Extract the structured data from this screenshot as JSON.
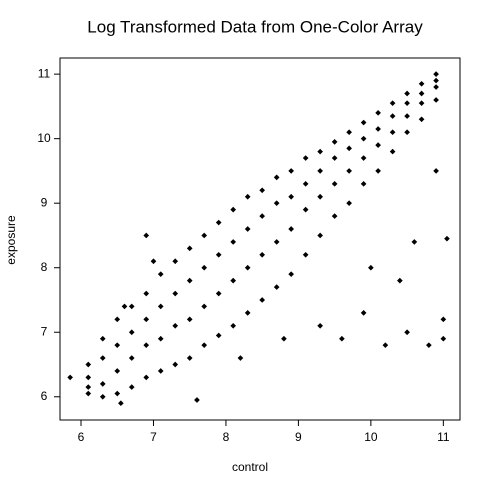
{
  "chart_data": {
    "type": "scatter",
    "title": "Log Transformed Data from One-Color Array",
    "x_label": "control",
    "y_label": "exposure",
    "color": "#000000",
    "xlim": [
      5.71,
      11.23
    ],
    "ylim": [
      5.64,
      11.25
    ],
    "xticks": [
      6,
      7,
      8,
      9,
      10,
      11
    ],
    "yticks": [
      6,
      7,
      8,
      9,
      10,
      11
    ],
    "x": [
      6.1,
      6.1,
      6.1,
      6.1,
      6.3,
      6.3,
      6.3,
      6.3,
      6.5,
      6.5,
      6.5,
      6.5,
      6.7,
      6.7,
      6.7,
      6.7,
      6.9,
      6.9,
      6.9,
      6.9,
      7.1,
      7.1,
      7.1,
      7.1,
      7.3,
      7.3,
      7.3,
      7.3,
      7.5,
      7.5,
      7.5,
      7.5,
      7.7,
      7.7,
      7.7,
      7.7,
      7.9,
      7.9,
      7.9,
      7.9,
      8.1,
      8.1,
      8.1,
      8.1,
      8.3,
      8.3,
      8.3,
      8.3,
      8.5,
      8.5,
      8.5,
      8.5,
      8.7,
      8.7,
      8.7,
      8.7,
      8.9,
      8.9,
      8.9,
      8.9,
      9.1,
      9.1,
      9.1,
      9.1,
      9.3,
      9.3,
      9.3,
      9.3,
      9.5,
      9.5,
      9.5,
      9.5,
      9.7,
      9.7,
      9.7,
      9.7,
      9.9,
      9.9,
      9.9,
      9.9,
      10.1,
      10.1,
      10.1,
      10.1,
      10.3,
      10.3,
      10.3,
      10.3,
      10.5,
      10.5,
      10.5,
      10.5,
      10.7,
      10.7,
      10.7,
      10.7,
      10.9,
      10.9,
      10.9,
      10.9,
      5.85,
      6.55,
      6.6,
      6.9,
      7.0,
      7.6,
      8.2,
      8.8,
      9.3,
      9.6,
      9.9,
      10.2,
      10.5,
      10.8,
      11.0,
      11.0,
      10.6,
      11.05,
      10.9,
      10.4,
      10.0
    ],
    "y": [
      6.5,
      6.3,
      6.15,
      6.05,
      6.9,
      6.6,
      6.2,
      6.0,
      7.2,
      6.8,
      6.4,
      6.05,
      7.4,
      7.0,
      6.6,
      6.15,
      7.6,
      7.2,
      6.8,
      6.3,
      7.9,
      7.4,
      6.9,
      6.4,
      8.1,
      7.6,
      7.1,
      6.5,
      8.3,
      7.8,
      7.2,
      6.6,
      8.5,
      8.0,
      7.4,
      6.8,
      8.7,
      8.2,
      7.6,
      6.95,
      8.9,
      8.4,
      7.8,
      7.1,
      9.1,
      8.6,
      8.0,
      7.3,
      9.2,
      8.8,
      8.2,
      7.5,
      9.4,
      9.0,
      8.4,
      7.7,
      9.5,
      9.1,
      8.6,
      7.9,
      9.7,
      9.3,
      8.9,
      8.2,
      9.8,
      9.5,
      9.1,
      8.5,
      9.95,
      9.7,
      9.3,
      8.8,
      10.1,
      9.85,
      9.5,
      9.0,
      10.25,
      10.0,
      9.7,
      9.3,
      10.4,
      10.15,
      9.9,
      9.5,
      10.55,
      10.35,
      10.1,
      9.8,
      10.7,
      10.55,
      10.35,
      10.1,
      10.85,
      10.7,
      10.55,
      10.3,
      11.0,
      10.9,
      10.8,
      10.6,
      6.3,
      5.9,
      7.4,
      8.5,
      8.1,
      5.95,
      6.6,
      6.9,
      7.1,
      6.9,
      7.3,
      6.8,
      7.0,
      6.8,
      7.2,
      6.9,
      8.4,
      8.45,
      9.5,
      7.8,
      8.0
    ]
  }
}
